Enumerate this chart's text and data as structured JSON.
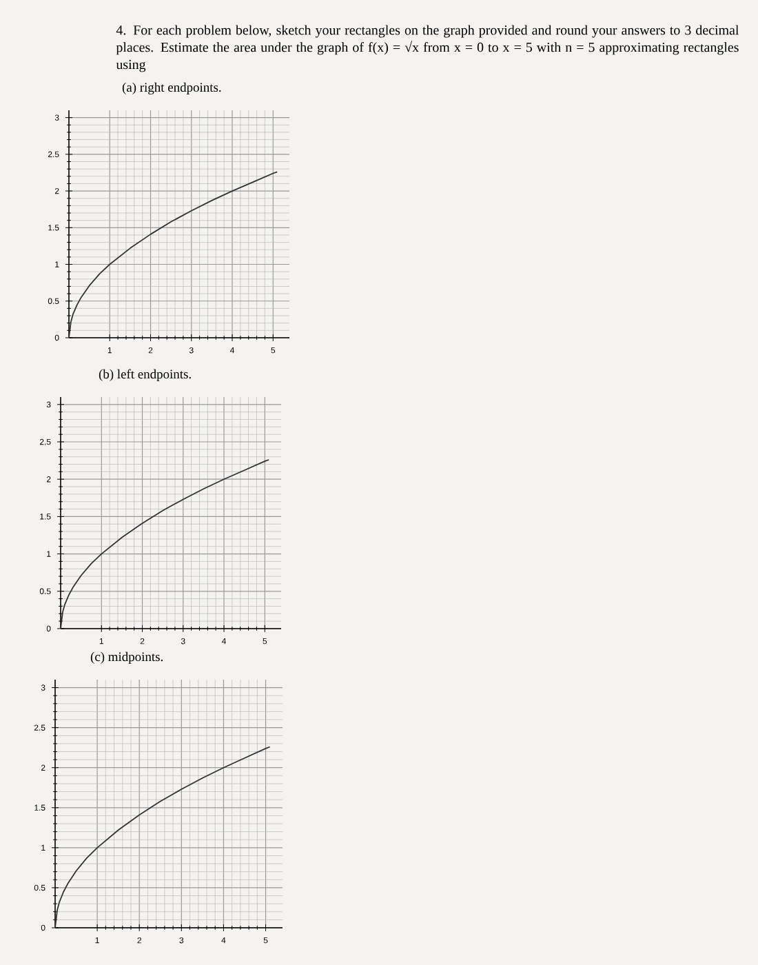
{
  "chart_data": [
    {
      "type": "line",
      "title": "(a) right endpoints.",
      "annotations": [
        "4. For each problem below, sketch your rectangles on the graph provided and round your answers to 3 decimal places. Estimate the area under the graph of f(x) = √x from x = 0 to x = 5 with n = 5 approximating rectangles using"
      ],
      "x": [
        0,
        0.05,
        0.1,
        0.2,
        0.3,
        0.5,
        0.75,
        1,
        1.5,
        2,
        2.5,
        3,
        3.5,
        4,
        4.5,
        5,
        5.1
      ],
      "values": [
        0,
        0.22,
        0.32,
        0.45,
        0.55,
        0.71,
        0.87,
        1,
        1.22,
        1.41,
        1.58,
        1.73,
        1.87,
        2,
        2.12,
        2.24,
        2.26
      ],
      "color": "#333333",
      "xlim": [
        0,
        5.4
      ],
      "ylim": [
        0,
        3.1
      ],
      "xticks": [
        1,
        2,
        3,
        4,
        5
      ],
      "yticks": [
        0,
        0.5,
        1,
        1.5,
        2,
        2.5,
        3
      ],
      "grid": true
    },
    {
      "type": "line",
      "title": "(b) left endpoints.",
      "x": [
        0,
        0.05,
        0.1,
        0.2,
        0.3,
        0.5,
        0.75,
        1,
        1.5,
        2,
        2.5,
        3,
        3.5,
        4,
        4.5,
        5,
        5.1
      ],
      "values": [
        0,
        0.22,
        0.32,
        0.45,
        0.55,
        0.71,
        0.87,
        1,
        1.22,
        1.41,
        1.58,
        1.73,
        1.87,
        2,
        2.12,
        2.24,
        2.26
      ],
      "color": "#333333",
      "xlim": [
        0,
        5.4
      ],
      "ylim": [
        0,
        3.1
      ],
      "xticks": [
        1,
        2,
        3,
        4,
        5
      ],
      "yticks": [
        0,
        0.5,
        1,
        1.5,
        2,
        2.5,
        3
      ],
      "grid": true
    },
    {
      "type": "line",
      "title": "(c) midpoints.",
      "x": [
        0,
        0.05,
        0.1,
        0.2,
        0.3,
        0.5,
        0.75,
        1,
        1.5,
        2,
        2.5,
        3,
        3.5,
        4,
        4.5,
        5,
        5.1
      ],
      "values": [
        0,
        0.22,
        0.32,
        0.45,
        0.55,
        0.71,
        0.87,
        1,
        1.22,
        1.41,
        1.58,
        1.73,
        1.87,
        2,
        2.12,
        2.24,
        2.26
      ],
      "color": "#333333",
      "xlim": [
        0,
        5.4
      ],
      "ylim": [
        0,
        3.1
      ],
      "xticks": [
        1,
        2,
        3,
        4,
        5
      ],
      "yticks": [
        0,
        0.5,
        1,
        1.5,
        2,
        2.5,
        3
      ],
      "grid": true
    }
  ]
}
